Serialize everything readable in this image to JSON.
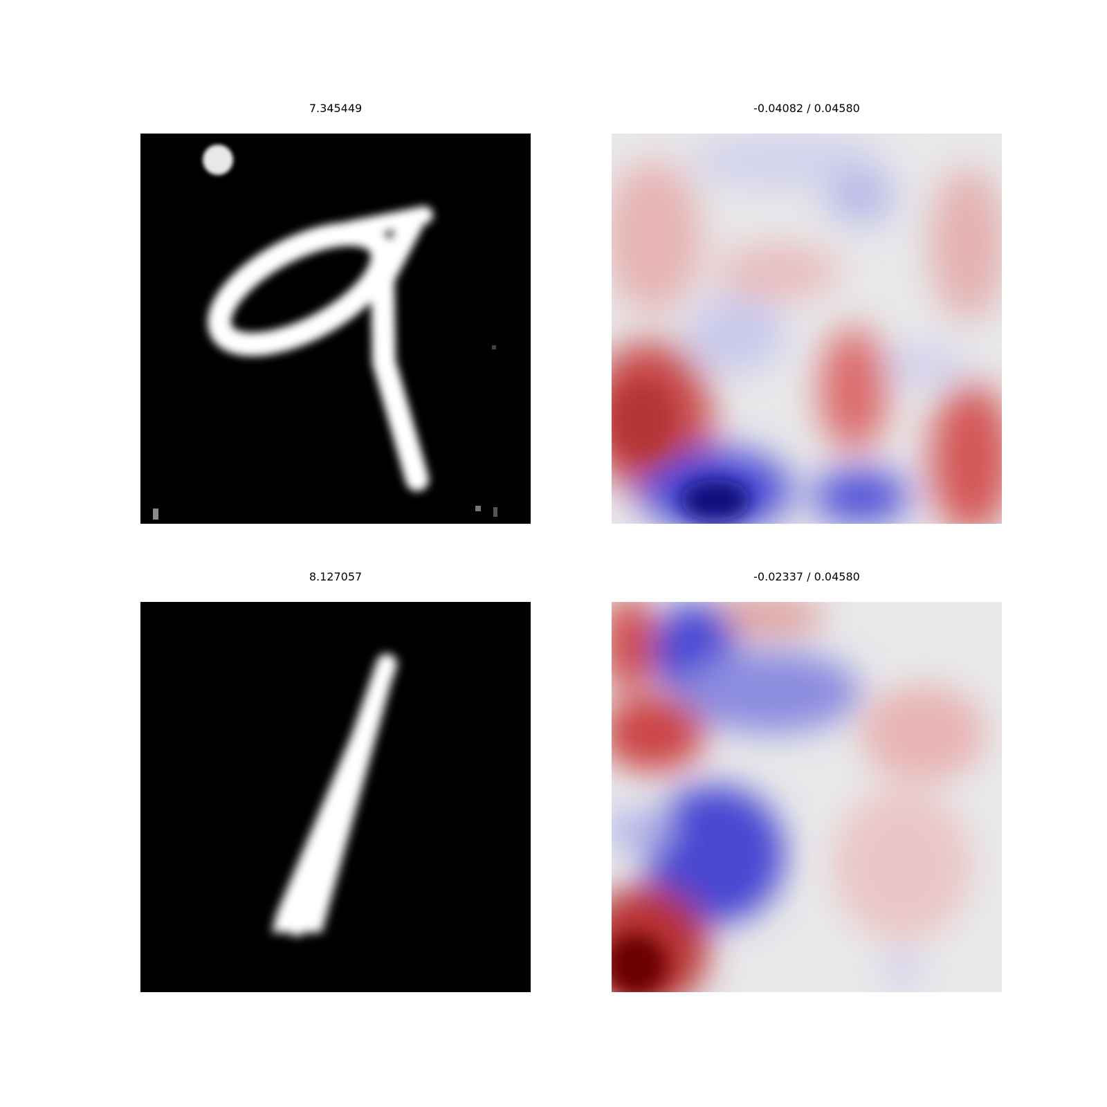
{
  "panels": [
    {
      "title": "7.345449",
      "kind": "digit-image",
      "depicted_digit": "9",
      "colormap": "gray"
    },
    {
      "title": "-0.04082 / 0.04580",
      "kind": "attribution-heatmap",
      "colormap": "seismic"
    },
    {
      "title": "8.127057",
      "kind": "digit-image",
      "depicted_digit": "1",
      "colormap": "gray"
    },
    {
      "title": "-0.02337 / 0.04580",
      "kind": "attribution-heatmap",
      "colormap": "seismic"
    }
  ],
  "colors": {
    "background": "#ffffff",
    "digit_background": "#000000",
    "digit_stroke": "#ffffff",
    "heatmap_neutral": "#e8e8ea",
    "heatmap_positive": "#c43a3a",
    "heatmap_positive_peak": "#7a0000",
    "heatmap_negative": "#3a3ad0",
    "heatmap_negative_peak": "#0a0a70"
  }
}
